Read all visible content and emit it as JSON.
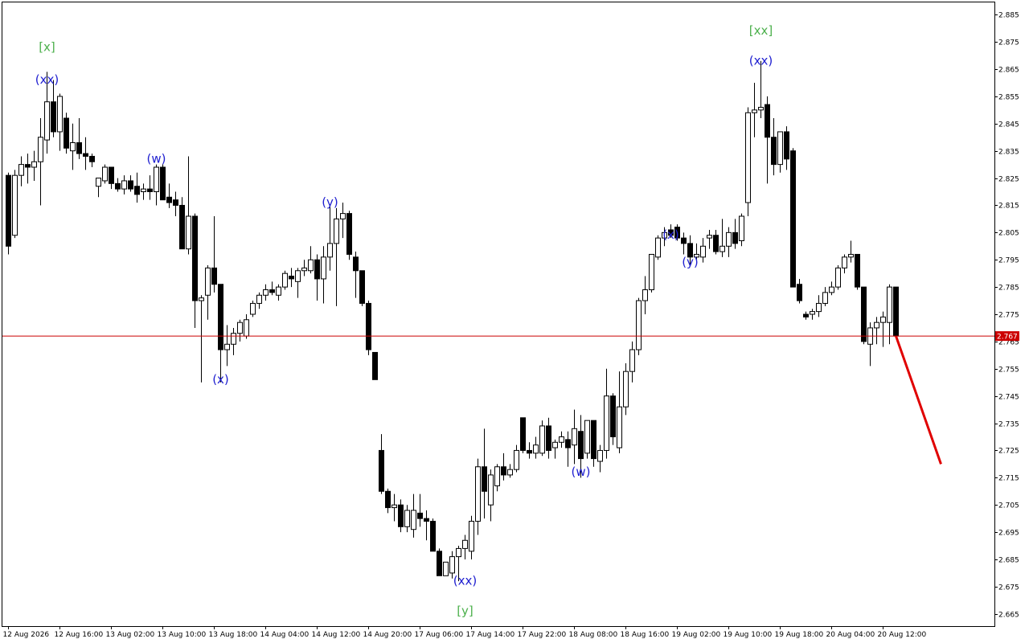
{
  "chart_data": {
    "type": "candlestick",
    "x": [
      "12 Aug 2026",
      null,
      null,
      null,
      null,
      null,
      null,
      null,
      "12 Aug 16:00",
      null,
      null,
      null,
      null,
      null,
      null,
      null,
      "13 Aug 02:00",
      null,
      null,
      null,
      null,
      null,
      null,
      null,
      "13 Aug 10:00",
      null,
      null,
      null,
      null,
      null,
      null,
      null,
      "13 Aug 18:00",
      null,
      null,
      null,
      null,
      null,
      null,
      null,
      "14 Aug 04:00",
      null,
      null,
      null,
      null,
      null,
      null,
      null,
      "14 Aug 12:00",
      null,
      null,
      null,
      null,
      null,
      null,
      null,
      "14 Aug 20:00",
      null,
      null,
      null,
      null,
      null,
      null,
      null,
      "17 Aug 06:00",
      null,
      null,
      null,
      null,
      null,
      null,
      null,
      "17 Aug 14:00",
      null,
      null,
      null,
      null,
      null,
      null,
      null,
      "17 Aug 22:00",
      null,
      null,
      null,
      null,
      null,
      null,
      null,
      "18 Aug 08:00",
      null,
      null,
      null,
      null,
      null,
      null,
      null,
      "18 Aug 16:00",
      null,
      null,
      null,
      null,
      null,
      null,
      null,
      "19 Aug 02:00",
      null,
      null,
      null,
      null,
      null,
      null,
      null,
      "19 Aug 10:00",
      null,
      null,
      null,
      null,
      null,
      null,
      null,
      "19 Aug 18:00",
      null,
      null,
      null,
      null,
      null,
      null,
      null,
      "20 Aug 04:00",
      null,
      null,
      null,
      null,
      null,
      null,
      null,
      "20 Aug 12:00",
      null,
      null
    ],
    "open": [
      2.826,
      2.804,
      2.826,
      2.83,
      2.829,
      2.831,
      2.839,
      2.853,
      2.842,
      2.847,
      2.835,
      2.838,
      2.834,
      2.833,
      2.822,
      2.824,
      2.829,
      2.823,
      2.821,
      2.824,
      2.822,
      2.82,
      2.821,
      2.82,
      2.829,
      2.818,
      2.817,
      2.815,
      2.799,
      2.811,
      2.78,
      2.782,
      2.792,
      2.786,
      2.762,
      2.764,
      2.768,
      2.767,
      2.775,
      2.779,
      2.782,
      2.784,
      2.782,
      2.785,
      2.789,
      2.787,
      2.791,
      2.791,
      2.795,
      2.788,
      2.796,
      2.801,
      2.81,
      2.812,
      2.796,
      2.791,
      2.779,
      2.761,
      2.725,
      2.71,
      2.704,
      2.705,
      2.697,
      2.696,
      2.702,
      2.7,
      2.699,
      2.688,
      2.679,
      2.68,
      2.686,
      2.689,
      2.688,
      2.699,
      2.719,
      2.705,
      2.712,
      2.719,
      2.716,
      2.718,
      2.737,
      2.725,
      2.724,
      2.724,
      2.734,
      2.726,
      2.728,
      2.729,
      2.727,
      2.732,
      2.724,
      2.736,
      2.721,
      2.725,
      2.745,
      2.726,
      2.741,
      2.754,
      2.762,
      2.78,
      2.784,
      2.796,
      2.803,
      2.806,
      2.807,
      2.803,
      2.801,
      2.796,
      2.796,
      2.803,
      2.804,
      2.798,
      2.8,
      2.805,
      2.802,
      2.816,
      2.849,
      2.85,
      2.852,
      2.84,
      2.83,
      2.842,
      2.835,
      2.786,
      2.775,
      2.775,
      2.776,
      2.779,
      2.783,
      2.785,
      2.792,
      2.796,
      2.797,
      2.785,
      2.764,
      2.77,
      2.772,
      2.772,
      2.785
    ],
    "high": [
      2.827,
      2.828,
      2.833,
      2.834,
      2.835,
      2.847,
      2.864,
      2.861,
      2.856,
      2.849,
      2.845,
      2.847,
      2.84,
      2.834,
      2.825,
      2.83,
      2.829,
      2.825,
      2.826,
      2.826,
      2.827,
      2.823,
      2.826,
      2.83,
      2.83,
      2.823,
      2.82,
      2.818,
      2.833,
      2.812,
      2.782,
      2.793,
      2.811,
      2.786,
      2.771,
      2.77,
      2.773,
      2.775,
      2.78,
      2.783,
      2.786,
      2.787,
      2.786,
      2.791,
      2.792,
      2.792,
      2.795,
      2.8,
      2.797,
      2.8,
      2.815,
      2.814,
      2.816,
      2.813,
      2.798,
      2.791,
      2.78,
      2.761,
      2.731,
      2.711,
      2.709,
      2.707,
      2.705,
      2.709,
      2.709,
      2.703,
      2.7,
      2.689,
      2.684,
      2.688,
      2.69,
      2.694,
      2.701,
      2.722,
      2.733,
      2.718,
      2.72,
      2.724,
      2.72,
      2.727,
      2.737,
      2.728,
      2.73,
      2.736,
      2.737,
      2.729,
      2.732,
      2.732,
      2.74,
      2.738,
      2.736,
      2.736,
      2.727,
      2.755,
      2.746,
      2.754,
      2.757,
      2.765,
      2.781,
      2.789,
      2.797,
      2.804,
      2.807,
      2.808,
      2.808,
      2.805,
      2.804,
      2.801,
      2.803,
      2.806,
      2.806,
      2.81,
      2.807,
      2.81,
      2.812,
      2.851,
      2.86,
      2.868,
      2.855,
      2.847,
      2.841,
      2.844,
      2.836,
      2.788,
      2.776,
      2.777,
      2.782,
      2.785,
      2.787,
      2.793,
      2.797,
      2.802,
      2.797,
      2.785,
      2.772,
      2.774,
      2.776,
      2.786,
      2.785
    ],
    "low": [
      2.797,
      2.803,
      2.822,
      2.823,
      2.824,
      2.815,
      2.834,
      2.84,
      2.835,
      2.834,
      2.828,
      2.832,
      2.828,
      2.829,
      2.818,
      2.823,
      2.821,
      2.82,
      2.819,
      2.82,
      2.816,
      2.817,
      2.817,
      2.815,
      2.817,
      2.814,
      2.811,
      2.801,
      2.797,
      2.77,
      2.75,
      2.773,
      2.783,
      2.75,
      2.756,
      2.76,
      2.765,
      2.766,
      2.774,
      2.777,
      2.78,
      2.782,
      2.78,
      2.784,
      2.785,
      2.781,
      2.789,
      2.79,
      2.78,
      2.779,
      2.791,
      2.778,
      2.803,
      2.795,
      2.781,
      2.778,
      2.76,
      2.751,
      2.709,
      2.702,
      2.699,
      2.695,
      2.695,
      2.693,
      2.697,
      2.692,
      2.688,
      2.679,
      2.679,
      2.678,
      2.677,
      2.685,
      2.685,
      2.694,
      2.7,
      2.699,
      2.71,
      2.714,
      2.715,
      2.717,
      2.724,
      2.722,
      2.722,
      2.723,
      2.722,
      2.722,
      2.726,
      2.719,
      2.72,
      2.715,
      2.722,
      2.719,
      2.717,
      2.722,
      2.727,
      2.724,
      2.738,
      2.75,
      2.76,
      2.775,
      2.783,
      2.795,
      2.8,
      2.803,
      2.802,
      2.797,
      2.793,
      2.794,
      2.794,
      2.799,
      2.797,
      2.796,
      2.796,
      2.799,
      2.8,
      2.811,
      2.84,
      2.847,
      2.823,
      2.826,
      2.827,
      2.828,
      2.785,
      2.779,
      2.773,
      2.773,
      2.774,
      2.778,
      2.782,
      2.784,
      2.79,
      2.794,
      2.784,
      2.764,
      2.756,
      2.764,
      2.763,
      2.764,
      2.767
    ],
    "close": [
      2.8,
      2.826,
      2.83,
      2.829,
      2.831,
      2.84,
      2.853,
      2.842,
      2.855,
      2.836,
      2.838,
      2.834,
      2.833,
      2.831,
      2.825,
      2.829,
      2.823,
      2.821,
      2.824,
      2.821,
      2.819,
      2.821,
      2.82,
      2.829,
      2.817,
      2.816,
      2.815,
      2.799,
      2.811,
      2.78,
      2.781,
      2.792,
      2.786,
      2.762,
      2.764,
      2.768,
      2.772,
      2.773,
      2.779,
      2.782,
      2.784,
      2.783,
      2.785,
      2.79,
      2.788,
      2.791,
      2.792,
      2.795,
      2.788,
      2.796,
      2.801,
      2.81,
      2.812,
      2.797,
      2.791,
      2.779,
      2.762,
      2.751,
      2.71,
      2.704,
      2.705,
      2.697,
      2.703,
      2.703,
      2.7,
      2.699,
      2.688,
      2.679,
      2.684,
      2.686,
      2.689,
      2.692,
      2.699,
      2.719,
      2.71,
      2.716,
      2.719,
      2.716,
      2.718,
      2.725,
      2.725,
      2.724,
      2.727,
      2.734,
      2.725,
      2.728,
      2.73,
      2.726,
      2.733,
      2.722,
      2.736,
      2.722,
      2.725,
      2.745,
      2.73,
      2.741,
      2.754,
      2.762,
      2.78,
      2.784,
      2.797,
      2.803,
      2.805,
      2.804,
      2.803,
      2.801,
      2.796,
      2.797,
      2.8,
      2.804,
      2.798,
      2.8,
      2.805,
      2.801,
      2.811,
      2.849,
      2.85,
      2.851,
      2.84,
      2.83,
      2.842,
      2.832,
      2.785,
      2.78,
      2.774,
      2.776,
      2.779,
      2.783,
      2.785,
      2.792,
      2.796,
      2.797,
      2.785,
      2.765,
      2.77,
      2.772,
      2.774,
      2.785,
      2.767
    ],
    "ylim": [
      2.6605,
      2.8895
    ],
    "yticks": [
      2.885,
      2.875,
      2.865,
      2.855,
      2.845,
      2.835,
      2.825,
      2.815,
      2.805,
      2.795,
      2.785,
      2.775,
      2.765,
      2.755,
      2.745,
      2.735,
      2.725,
      2.715,
      2.705,
      2.695,
      2.685,
      2.675,
      2.665
    ],
    "current_price": 2.767,
    "price_line_color": "#cc0000",
    "annotations": [
      {
        "text": "[x]",
        "candle": 6,
        "value": 2.873,
        "color": "#4cb04c"
      },
      {
        "text": "(xx)",
        "candle": 6,
        "value": 2.861,
        "color": "#2020d0"
      },
      {
        "text": "(w)",
        "candle": 23,
        "value": 2.832,
        "color": "#2020d0"
      },
      {
        "text": "(x)",
        "candle": 33,
        "value": 2.751,
        "color": "#2020d0"
      },
      {
        "text": "(y)",
        "candle": 50,
        "value": 2.816,
        "color": "#2020d0"
      },
      {
        "text": "(xx)",
        "candle": 71,
        "value": 2.677,
        "color": "#2020d0"
      },
      {
        "text": "[y]",
        "candle": 71,
        "value": 2.666,
        "color": "#4cb04c"
      },
      {
        "text": "(w)",
        "candle": 89,
        "value": 2.717,
        "color": "#2020d0"
      },
      {
        "text": "(x)",
        "candle": 103,
        "value": 2.804,
        "color": "#2020d0"
      },
      {
        "text": "(y)",
        "candle": 106,
        "value": 2.794,
        "color": "#2020d0"
      },
      {
        "text": "(xx)",
        "candle": 117,
        "value": 2.868,
        "color": "#2020d0"
      },
      {
        "text": "[xx]",
        "candle": 117,
        "value": 2.879,
        "color": "#4cb04c"
      }
    ],
    "forecast_line": {
      "candles": [
        138,
        145
      ],
      "values": [
        2.767,
        2.72
      ],
      "color": "#e00000"
    }
  }
}
